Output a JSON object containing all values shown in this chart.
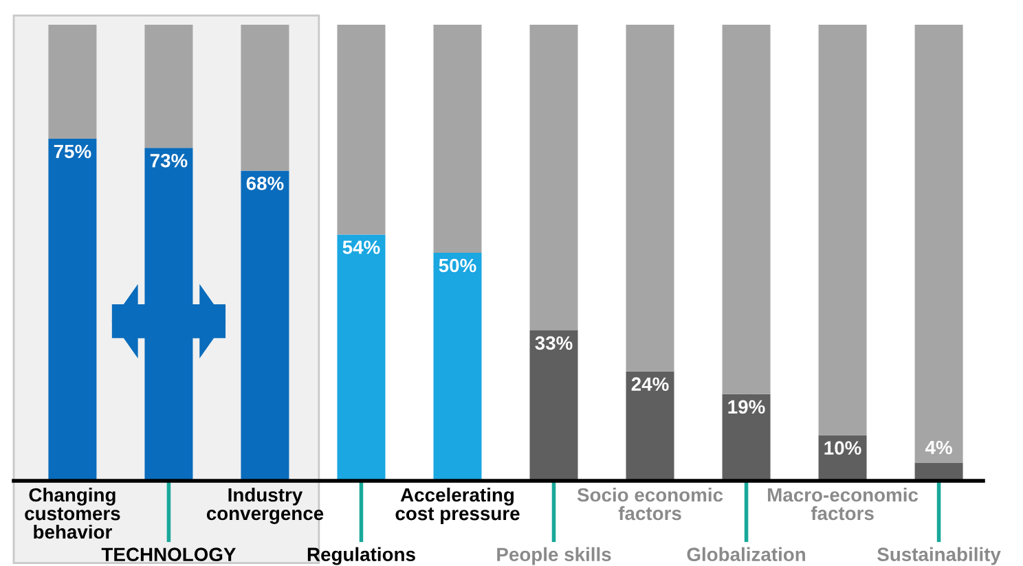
{
  "chart_data": {
    "type": "bar",
    "stacked": true,
    "ylim": [
      0,
      100
    ],
    "categories": [
      "Changing\ncustomers\nbehavior",
      "TECHNOLOGY",
      "Industry\nconvergence",
      "Regulations",
      "Accelerating\ncost pressure",
      "People skills",
      "Socio economic\nfactors",
      "Globalization",
      "Macro-economic\nfactors",
      "Sustainability"
    ],
    "series": [
      {
        "values": [
          75,
          73,
          68,
          54,
          50,
          33,
          24,
          19,
          10,
          4
        ],
        "colors": [
          "#0a6cbc",
          "#0a6cbc",
          "#0a6cbc",
          "#1aa7e2",
          "#1aa7e2",
          "#5f5f5f",
          "#5f5f5f",
          "#5f5f5f",
          "#5f5f5f",
          "#5f5f5f"
        ],
        "value_labels": [
          "75%",
          "73%",
          "68%",
          "54%",
          "50%",
          "33%",
          "24%",
          "19%",
          "10%",
          "4%"
        ]
      },
      {
        "values": [
          25,
          27,
          32,
          46,
          50,
          67,
          76,
          81,
          90,
          96
        ],
        "color": "#a5a5a5"
      }
    ]
  }
}
